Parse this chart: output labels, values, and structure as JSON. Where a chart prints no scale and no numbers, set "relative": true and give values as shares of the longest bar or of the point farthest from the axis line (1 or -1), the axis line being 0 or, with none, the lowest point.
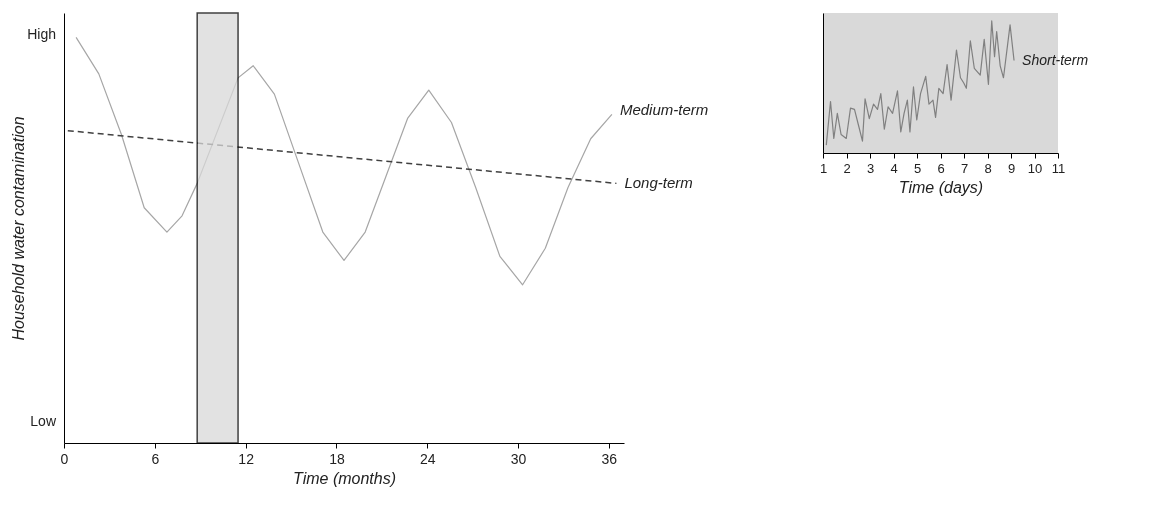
{
  "chart_data": [
    {
      "type": "line",
      "xlabel": "Time (months)",
      "ylabel": "Household water contamination",
      "relative": true,
      "annotations": [
        "High",
        "Low"
      ],
      "xlim": [
        0,
        37
      ],
      "xticks": [
        0,
        6,
        12,
        18,
        24,
        30,
        36
      ],
      "grid": false,
      "legend": false,
      "bands": [
        {
          "axis": "x",
          "from": 8.8,
          "to": 11.5,
          "color": "#d9d9d9"
        }
      ],
      "series": [
        {
          "name": "Medium-term",
          "color": "#a6a6a6",
          "line_style": "solid",
          "x": [
            0.8,
            2.3,
            3.8,
            5.3,
            6.8,
            7.8,
            8.8,
            11.5,
            12.5,
            13.9,
            15.5,
            17.1,
            18.5,
            19.9,
            21.3,
            22.7,
            24.1,
            25.6,
            27.2,
            28.8,
            30.3,
            31.8,
            33.3,
            34.8,
            36.2
          ],
          "values": [
            1.0,
            0.91,
            0.76,
            0.58,
            0.52,
            0.56,
            0.64,
            0.9,
            0.93,
            0.86,
            0.69,
            0.52,
            0.45,
            0.52,
            0.66,
            0.8,
            0.87,
            0.79,
            0.63,
            0.46,
            0.39,
            0.48,
            0.63,
            0.75,
            0.81
          ]
        },
        {
          "name": "Long-term",
          "color": "#404040",
          "line_style": "dashed",
          "x": [
            0.25,
            36.5
          ],
          "values": [
            0.77,
            0.64
          ]
        }
      ]
    },
    {
      "type": "line",
      "xlabel": "Time (days)",
      "relative": true,
      "xlim": [
        1,
        11
      ],
      "xticks": [
        1,
        2,
        3,
        4,
        5,
        6,
        7,
        8,
        9,
        10,
        11
      ],
      "grid": false,
      "legend": false,
      "series": [
        {
          "name": "Short-term",
          "color": "#808080",
          "line_style": "solid",
          "x": [
            1.14,
            1.32,
            1.46,
            1.61,
            1.77,
            1.99,
            2.17,
            2.34,
            2.51,
            2.68,
            2.79,
            2.97,
            3.15,
            3.32,
            3.46,
            3.61,
            3.77,
            3.96,
            4.17,
            4.31,
            4.45,
            4.59,
            4.7,
            4.85,
            4.99,
            5.15,
            5.37,
            5.51,
            5.68,
            5.79,
            5.93,
            6.11,
            6.28,
            6.45,
            6.68,
            6.85,
            6.99,
            7.1,
            7.27,
            7.44,
            7.69,
            7.86,
            8.04,
            8.18,
            8.3,
            8.39,
            8.54,
            8.68,
            8.96,
            9.13
          ],
          "values": [
            0.06,
            0.39,
            0.11,
            0.3,
            0.14,
            0.11,
            0.34,
            0.33,
            0.21,
            0.09,
            0.41,
            0.26,
            0.37,
            0.33,
            0.45,
            0.18,
            0.35,
            0.3,
            0.47,
            0.16,
            0.3,
            0.4,
            0.16,
            0.5,
            0.25,
            0.45,
            0.58,
            0.37,
            0.4,
            0.27,
            0.49,
            0.45,
            0.67,
            0.4,
            0.78,
            0.57,
            0.53,
            0.49,
            0.85,
            0.64,
            0.59,
            0.86,
            0.52,
            1.0,
            0.73,
            0.92,
            0.66,
            0.57,
            0.97,
            0.7
          ]
        }
      ]
    }
  ]
}
